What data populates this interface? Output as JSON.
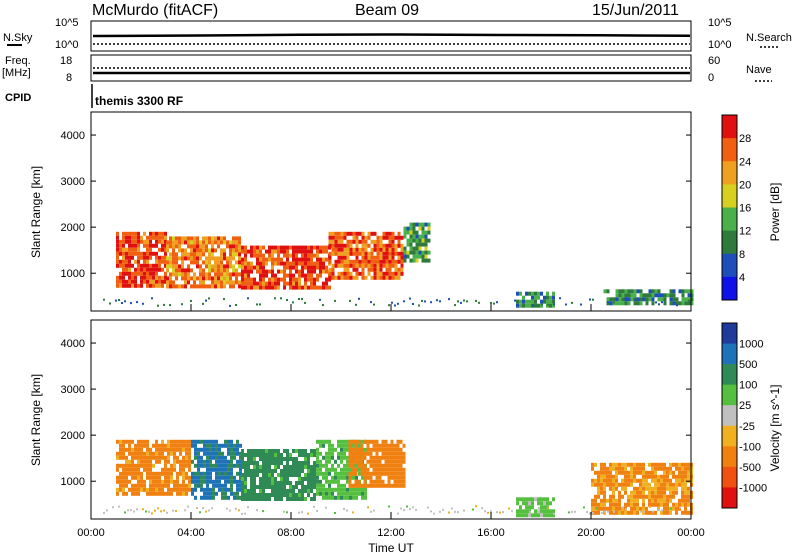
{
  "header": {
    "station": "McMurdo (fitACF)",
    "beam": "Beam 09",
    "date": "15/Jun/2011"
  },
  "status_panels": {
    "nsky_label": "N.Sky",
    "nsearch_label": "N.Search",
    "noise_ticks": [
      "10^5",
      "10^0"
    ],
    "freq_label": "Freq.",
    "freq_unit": "[MHz]",
    "freq_ticks": [
      "18",
      "8"
    ],
    "nave_label": "Nave",
    "nave_ticks": [
      "60",
      "0"
    ],
    "cpid_label": "CPID",
    "program_name": "themis 3300 RF"
  },
  "xaxis": {
    "label": "Time UT",
    "ticks": [
      "00:00",
      "04:00",
      "08:00",
      "12:00",
      "16:00",
      "20:00",
      "00:00"
    ]
  },
  "colors": {
    "power_scale": [
      "#1010e8",
      "#1e4fb8",
      "#2d7a3c",
      "#49b04a",
      "#d8d020",
      "#f0a020",
      "#f06010",
      "#e01010"
    ],
    "velocity_scale": [
      "#1e3a9a",
      "#1e72b8",
      "#2f8a55",
      "#55c040",
      "#c0c0c0",
      "#f0b020",
      "#f08010",
      "#f05010",
      "#e01010"
    ]
  },
  "chart_data": [
    {
      "type": "heatmap",
      "name": "power",
      "ylabel": "Slant Range [km]",
      "ylim": [
        180,
        4500
      ],
      "yticks": [
        1000,
        2000,
        3000,
        4000
      ],
      "xlim_hours": [
        0,
        24
      ],
      "colorbar_label": "Power [dB]",
      "colorbar_ticks": [
        "28",
        "24",
        "20",
        "16",
        "12",
        "8",
        "4"
      ],
      "colorbar_range_db": [
        0,
        32
      ],
      "regions": [
        {
          "t0": 1.0,
          "t1": 3.0,
          "r0": 700,
          "r1": 1900,
          "level": 28
        },
        {
          "t0": 3.0,
          "t1": 6.0,
          "r0": 700,
          "r1": 1800,
          "level": 24
        },
        {
          "t0": 6.0,
          "t1": 9.5,
          "r0": 650,
          "r1": 1600,
          "level": 28
        },
        {
          "t0": 9.5,
          "t1": 12.5,
          "r0": 900,
          "r1": 1900,
          "level": 26
        },
        {
          "t0": 12.5,
          "t1": 13.5,
          "r0": 1300,
          "r1": 2100,
          "level": 12
        },
        {
          "t0": 17.0,
          "t1": 18.5,
          "r0": 300,
          "r1": 600,
          "level": 10
        },
        {
          "t0": 20.5,
          "t1": 24.0,
          "r0": 350,
          "r1": 650,
          "level": 10
        }
      ]
    },
    {
      "type": "heatmap",
      "name": "velocity",
      "ylabel": "Slant Range [km]",
      "ylim": [
        180,
        4500
      ],
      "yticks": [
        1000,
        2000,
        3000,
        4000
      ],
      "xlim_hours": [
        0,
        24
      ],
      "colorbar_label": "Velocity [m s^-1]",
      "colorbar_ticks": [
        "1000",
        "500",
        "100",
        "25",
        "-25",
        "-100",
        "-500",
        "-1000"
      ],
      "regions": [
        {
          "t0": 1.0,
          "t1": 4.0,
          "r0": 700,
          "r1": 1900,
          "v": -150
        },
        {
          "t0": 4.0,
          "t1": 6.0,
          "r0": 650,
          "r1": 1900,
          "v": 600
        },
        {
          "t0": 6.0,
          "t1": 9.0,
          "r0": 600,
          "r1": 1700,
          "v": 150
        },
        {
          "t0": 9.0,
          "t1": 11.0,
          "r0": 650,
          "r1": 1900,
          "v": 80
        },
        {
          "t0": 10.3,
          "t1": 12.5,
          "r0": 900,
          "r1": 1900,
          "v": -200
        },
        {
          "t0": 17.0,
          "t1": 18.5,
          "r0": 300,
          "r1": 650,
          "v": 50
        },
        {
          "t0": 20.0,
          "t1": 24.0,
          "r0": 350,
          "r1": 1400,
          "v": -120
        }
      ]
    }
  ]
}
